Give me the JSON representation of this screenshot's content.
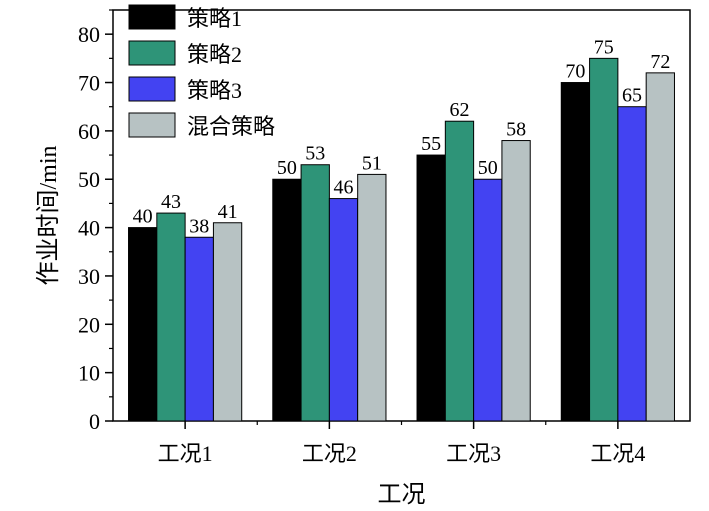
{
  "chart_data": {
    "type": "bar",
    "title": "",
    "xlabel": "工况",
    "ylabel": "作业时间/min",
    "ylim": [
      0,
      85
    ],
    "yticks": [
      0,
      10,
      20,
      30,
      40,
      50,
      60,
      70,
      80
    ],
    "categories": [
      "工况1",
      "工况2",
      "工况3",
      "工况4"
    ],
    "legend_position": "top-left",
    "series": [
      {
        "name": "策略1",
        "color": "#000000",
        "values": [
          40,
          50,
          55,
          70
        ]
      },
      {
        "name": "策略2",
        "color": "#2e9478",
        "values": [
          43,
          53,
          62,
          75
        ]
      },
      {
        "name": "策略3",
        "color": "#4343f2",
        "values": [
          38,
          46,
          50,
          65
        ]
      },
      {
        "name": "混合策略",
        "color": "#b7c2c3",
        "values": [
          41,
          51,
          58,
          72
        ]
      }
    ]
  }
}
